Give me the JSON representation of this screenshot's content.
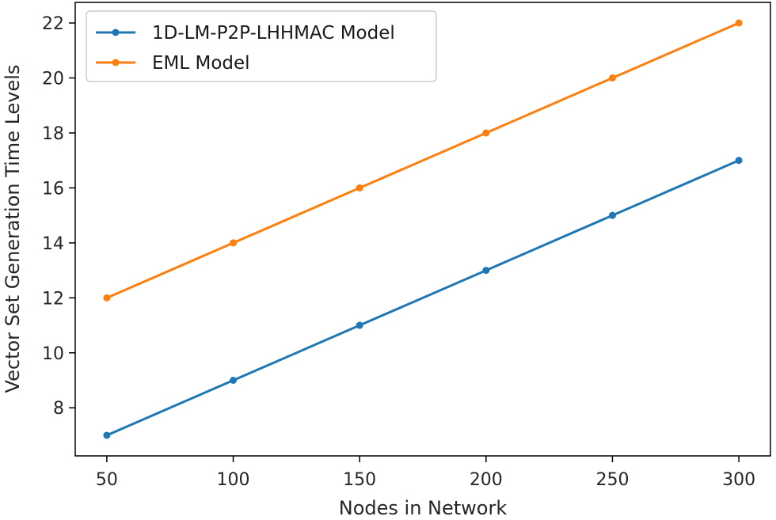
{
  "chart_data": {
    "type": "line",
    "title": "",
    "xlabel": "Nodes in Network",
    "ylabel": "Vector Set Generation Time Levels",
    "x": [
      50,
      100,
      150,
      200,
      250,
      300
    ],
    "xticks": [
      "50",
      "100",
      "150",
      "200",
      "250",
      "300"
    ],
    "yticks": [
      "8",
      "10",
      "12",
      "14",
      "16",
      "18",
      "20",
      "22"
    ],
    "xlim": [
      37.5,
      312.5
    ],
    "ylim": [
      6.25,
      22.75
    ],
    "grid": false,
    "legend_position": "top-left",
    "series": [
      {
        "name": "1D-LM-P2P-LHHMAC Model",
        "color": "#1f77b4",
        "values": [
          7,
          9,
          11,
          13,
          15,
          17
        ]
      },
      {
        "name": "EML Model",
        "color": "#ff7f0e",
        "values": [
          12,
          14,
          16,
          18,
          20,
          22
        ]
      }
    ]
  }
}
